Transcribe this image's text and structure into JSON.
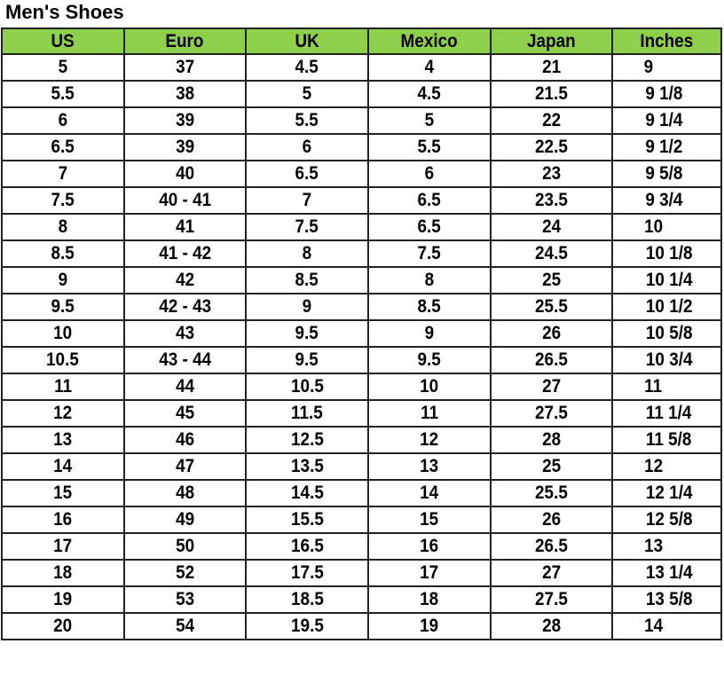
{
  "title": "Men's Shoes",
  "colors": {
    "header_bg": "#8ed04c",
    "border": "#222222"
  },
  "columns": [
    "US",
    "Euro",
    "UK",
    "Mexico",
    "Japan",
    "Inches"
  ],
  "rows": [
    [
      "5",
      "37",
      "4.5",
      "4",
      "21",
      "9"
    ],
    [
      "5.5",
      "38",
      "5",
      "4.5",
      "21.5",
      "9 1/8"
    ],
    [
      "6",
      "39",
      "5.5",
      "5",
      "22",
      "9 1/4"
    ],
    [
      "6.5",
      "39",
      "6",
      "5.5",
      "22.5",
      "9 1/2"
    ],
    [
      "7",
      "40",
      "6.5",
      "6",
      "23",
      "9 5/8"
    ],
    [
      "7.5",
      "40 - 41",
      "7",
      "6.5",
      "23.5",
      "9 3/4"
    ],
    [
      "8",
      "41",
      "7.5",
      "6.5",
      "24",
      "10"
    ],
    [
      "8.5",
      "41 - 42",
      "8",
      "7.5",
      "24.5",
      "10 1/8"
    ],
    [
      "9",
      "42",
      "8.5",
      "8",
      "25",
      "10 1/4"
    ],
    [
      "9.5",
      "42 - 43",
      "9",
      "8.5",
      "25.5",
      "10 1/2"
    ],
    [
      "10",
      "43",
      "9.5",
      "9",
      "26",
      "10 5/8"
    ],
    [
      "10.5",
      "43 - 44",
      "9.5",
      "9.5",
      "26.5",
      "10 3/4"
    ],
    [
      "11",
      "44",
      "10.5",
      "10",
      "27",
      "11"
    ],
    [
      "12",
      "45",
      "11.5",
      "11",
      "27.5",
      "11 1/4"
    ],
    [
      "13",
      "46",
      "12.5",
      "12",
      "28",
      "11 5/8"
    ],
    [
      "14",
      "47",
      "13.5",
      "13",
      "25",
      "12"
    ],
    [
      "15",
      "48",
      "14.5",
      "14",
      "25.5",
      "12 1/4"
    ],
    [
      "16",
      "49",
      "15.5",
      "15",
      "26",
      "12 5/8"
    ],
    [
      "17",
      "50",
      "16.5",
      "16",
      "26.5",
      "13"
    ],
    [
      "18",
      "52",
      "17.5",
      "17",
      "27",
      "13 1/4"
    ],
    [
      "19",
      "53",
      "18.5",
      "18",
      "27.5",
      "13 5/8"
    ],
    [
      "20",
      "54",
      "19.5",
      "19",
      "28",
      "14"
    ]
  ]
}
